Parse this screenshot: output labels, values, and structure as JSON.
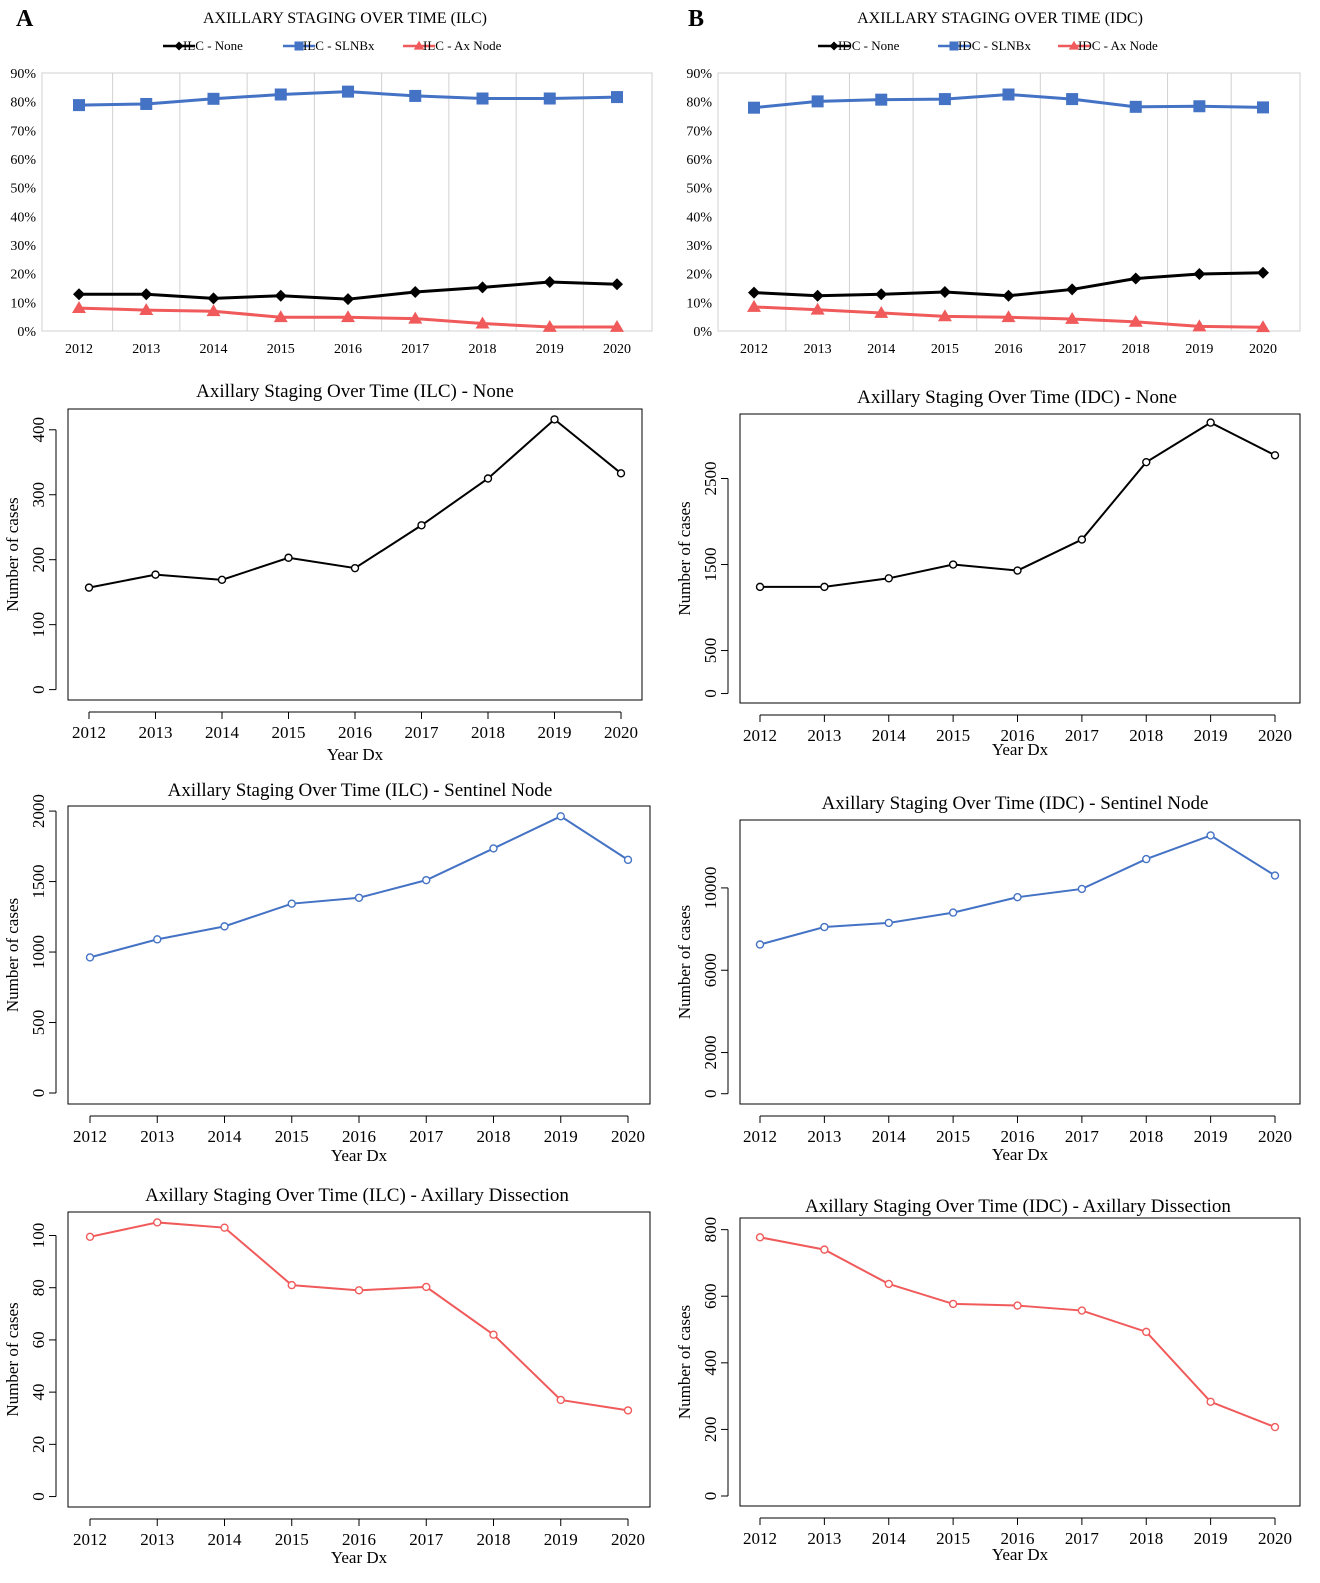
{
  "panel_labels": [
    "A",
    "B"
  ],
  "chart_data": [
    {
      "id": "ilc_pct",
      "type": "line",
      "title": "AXILLARY STAGING OVER TIME (ILC)",
      "categories": [
        "2012",
        "2013",
        "2014",
        "2015",
        "2016",
        "2017",
        "2018",
        "2019",
        "2020"
      ],
      "ylim": [
        0,
        90
      ],
      "y_format": "percent",
      "yticks": [
        0,
        10,
        20,
        30,
        40,
        50,
        60,
        70,
        80,
        90
      ],
      "grid": "vertical",
      "legend": "top",
      "series": [
        {
          "name": "ILC - None",
          "color": "#000000",
          "marker": "diamond",
          "values": [
            12.8,
            12.8,
            11.4,
            12.3,
            11.1,
            13.6,
            15.2,
            17.1,
            16.3
          ]
        },
        {
          "name": "ILC - SLNBx",
          "color": "#4472C4",
          "marker": "square",
          "values": [
            78.8,
            79.2,
            81.0,
            82.5,
            83.5,
            82.0,
            81.1,
            81.1,
            81.6
          ]
        },
        {
          "name": "ILC - Ax Node",
          "color": "#F05A5A",
          "marker": "triangle",
          "values": [
            8.0,
            7.3,
            6.9,
            4.8,
            4.8,
            4.3,
            2.6,
            1.4,
            1.4
          ]
        }
      ]
    },
    {
      "id": "idc_pct",
      "type": "line",
      "title": "AXILLARY STAGING OVER TIME (IDC)",
      "categories": [
        "2012",
        "2013",
        "2014",
        "2015",
        "2016",
        "2017",
        "2018",
        "2019",
        "2020"
      ],
      "ylim": [
        0,
        90
      ],
      "y_format": "percent",
      "yticks": [
        0,
        10,
        20,
        30,
        40,
        50,
        60,
        70,
        80,
        90
      ],
      "grid": "vertical",
      "legend": "top",
      "series": [
        {
          "name": "IDC - None",
          "color": "#000000",
          "marker": "diamond",
          "values": [
            13.4,
            12.3,
            12.8,
            13.6,
            12.3,
            14.5,
            18.3,
            19.9,
            20.3
          ]
        },
        {
          "name": "IDC - SLNBx",
          "color": "#4472C4",
          "marker": "square",
          "values": [
            77.9,
            80.1,
            80.7,
            80.9,
            82.5,
            80.9,
            78.2,
            78.4,
            78.0
          ]
        },
        {
          "name": "IDC - Ax Node",
          "color": "#F05A5A",
          "marker": "triangle",
          "values": [
            8.4,
            7.4,
            6.3,
            5.1,
            4.8,
            4.2,
            3.2,
            1.6,
            1.3
          ]
        }
      ]
    },
    {
      "id": "ilc_none",
      "type": "line",
      "title": "Axillary Staging Over Time (ILC) - None",
      "xlabel": "Year Dx",
      "ylabel": "Number of cases",
      "categories": [
        "2012",
        "2013",
        "2014",
        "2015",
        "2016",
        "2017",
        "2018",
        "2019",
        "2020"
      ],
      "ylim": [
        -16,
        432
      ],
      "yticks": [
        0,
        100,
        200,
        300,
        400
      ],
      "color": "#000000",
      "values": [
        157,
        177,
        169,
        203,
        187,
        253,
        325,
        416,
        333
      ]
    },
    {
      "id": "idc_none",
      "type": "line",
      "title": "Axillary Staging Over Time (IDC) - None",
      "xlabel": "Year Dx",
      "ylabel": "Number of cases",
      "categories": [
        "2012",
        "2013",
        "2014",
        "2015",
        "2016",
        "2017",
        "2018",
        "2019",
        "2020"
      ],
      "ylim": [
        -110,
        3250
      ],
      "yticks": [
        0,
        500,
        1500,
        2500
      ],
      "color": "#000000",
      "values": [
        1240,
        1240,
        1340,
        1500,
        1430,
        1790,
        2690,
        3150,
        2770
      ]
    },
    {
      "id": "ilc_sln",
      "type": "line",
      "title": "Axillary Staging Over Time (ILC) - Sentinel Node",
      "xlabel": "Year Dx",
      "ylabel": "Number of cases",
      "categories": [
        "2012",
        "2013",
        "2014",
        "2015",
        "2016",
        "2017",
        "2018",
        "2019",
        "2020"
      ],
      "ylim": [
        -78,
        2036
      ],
      "yticks": [
        0,
        500,
        1000,
        1500,
        2000
      ],
      "color": "#4472C4",
      "values": [
        962,
        1090,
        1182,
        1343,
        1385,
        1510,
        1735,
        1963,
        1654
      ]
    },
    {
      "id": "idc_sln",
      "type": "line",
      "title": "Axillary Staging Over Time (IDC) - Sentinel Node",
      "xlabel": "Year Dx",
      "ylabel": "Number of cases",
      "categories": [
        "2012",
        "2013",
        "2014",
        "2015",
        "2016",
        "2017",
        "2018",
        "2019",
        "2020"
      ],
      "ylim": [
        -500,
        13300
      ],
      "yticks": [
        0,
        2000,
        6000,
        10000
      ],
      "color": "#4472C4",
      "values": [
        7250,
        8100,
        8300,
        8800,
        9550,
        9950,
        11400,
        12550,
        10600
      ]
    },
    {
      "id": "ilc_ax",
      "type": "line",
      "title": "Axillary Staging Over Time (ILC) - Axillary Dissection",
      "xlabel": "Year Dx",
      "ylabel": "Number of cases",
      "categories": [
        "2012",
        "2013",
        "2014",
        "2015",
        "2016",
        "2017",
        "2018",
        "2019",
        "2020"
      ],
      "ylim": [
        -4,
        109
      ],
      "yticks": [
        0,
        20,
        40,
        60,
        80,
        100
      ],
      "color": "#F05A5A",
      "values": [
        99.5,
        105,
        103,
        81,
        79,
        80.3,
        62,
        37,
        33
      ]
    },
    {
      "id": "idc_ax",
      "type": "line",
      "title": "Axillary Staging Over Time (IDC) - Axillary Dissection",
      "xlabel": "Year Dx",
      "ylabel": "Number of cases",
      "categories": [
        "2012",
        "2013",
        "2014",
        "2015",
        "2016",
        "2017",
        "2018",
        "2019",
        "2020"
      ],
      "ylim": [
        -30,
        835
      ],
      "yticks": [
        0,
        200,
        400,
        600,
        800
      ],
      "color": "#F05A5A",
      "values": [
        777,
        740,
        637,
        577,
        572,
        557,
        493,
        283,
        207
      ]
    }
  ]
}
